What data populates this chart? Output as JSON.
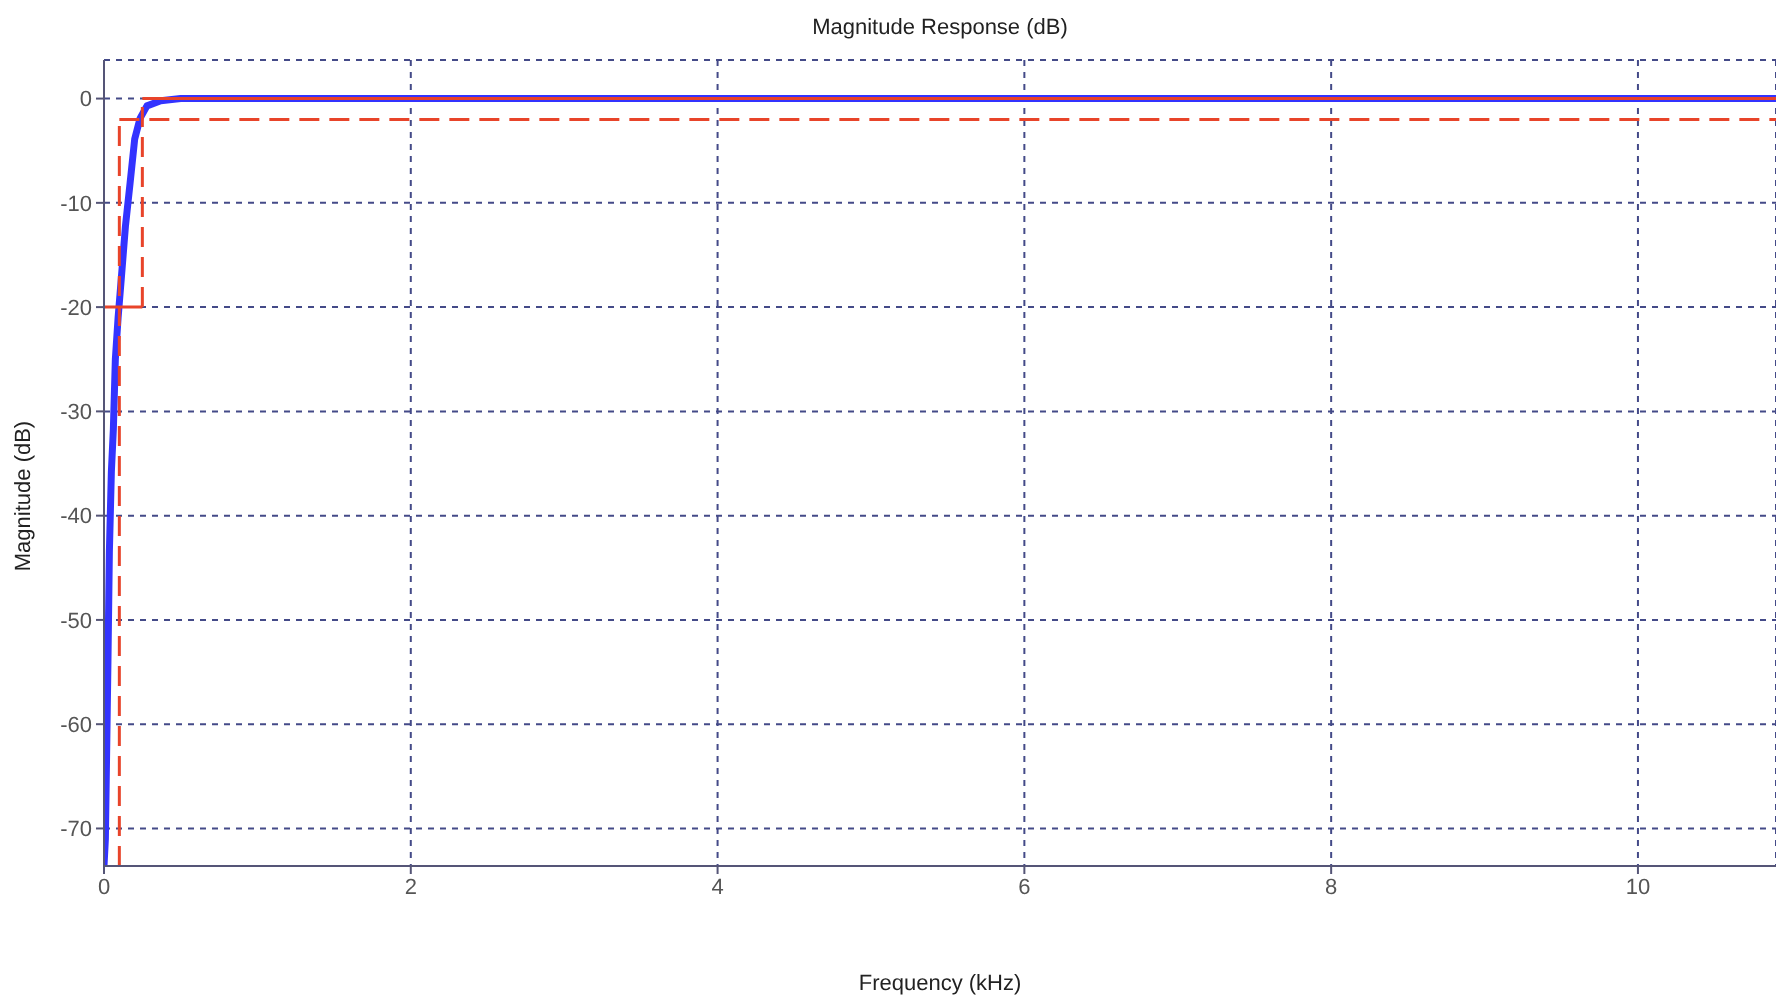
{
  "chart_data": {
    "type": "line",
    "title": "Magnitude Response (dB)",
    "xlabel": "Frequency (kHz)",
    "ylabel": "Magnitude (dB)",
    "xlim": [
      0,
      10.9
    ],
    "ylim": [
      -73.6,
      3.7
    ],
    "xticks": [
      0,
      2,
      4,
      6,
      8,
      10
    ],
    "yticks": [
      0,
      -10,
      -20,
      -30,
      -40,
      -50,
      -60,
      -70
    ],
    "grid": true,
    "marker": "none",
    "series": [
      {
        "color": "#3333ff",
        "line_style": "solid",
        "x": [
          0,
          0.009,
          0.026,
          0.035,
          0.048,
          0.061,
          0.074,
          0.092,
          0.113,
          0.14,
          0.17,
          0.2,
          0.235,
          0.28,
          0.37,
          0.5,
          10.9
        ],
        "values": [
          -73.6,
          -71,
          -53.8,
          -43.5,
          -35.8,
          -31.7,
          -25,
          -21,
          -17.2,
          -12.2,
          -8.1,
          -3.9,
          -1.9,
          -0.7,
          -0.2,
          0,
          0
        ]
      },
      {
        "color": "#e8442a",
        "line_style": "solid",
        "x": [
          0,
          0.25
        ],
        "values": [
          -20,
          -20
        ]
      },
      {
        "color": "#e8442a",
        "line_style": "dashed",
        "x": [
          0.25,
          0.25
        ],
        "values": [
          -20,
          0
        ]
      },
      {
        "color": "#e8442a",
        "line_style": "solid",
        "x": [
          0.25,
          10.9
        ],
        "values": [
          0,
          0
        ]
      },
      {
        "color": "#e8442a",
        "line_style": "dashed",
        "x": [
          0.1,
          0.1
        ],
        "values": [
          -73.6,
          -2
        ]
      },
      {
        "color": "#e8442a",
        "line_style": "dashed",
        "x": [
          0.1,
          10.9
        ],
        "values": [
          -2,
          -2
        ]
      }
    ]
  }
}
